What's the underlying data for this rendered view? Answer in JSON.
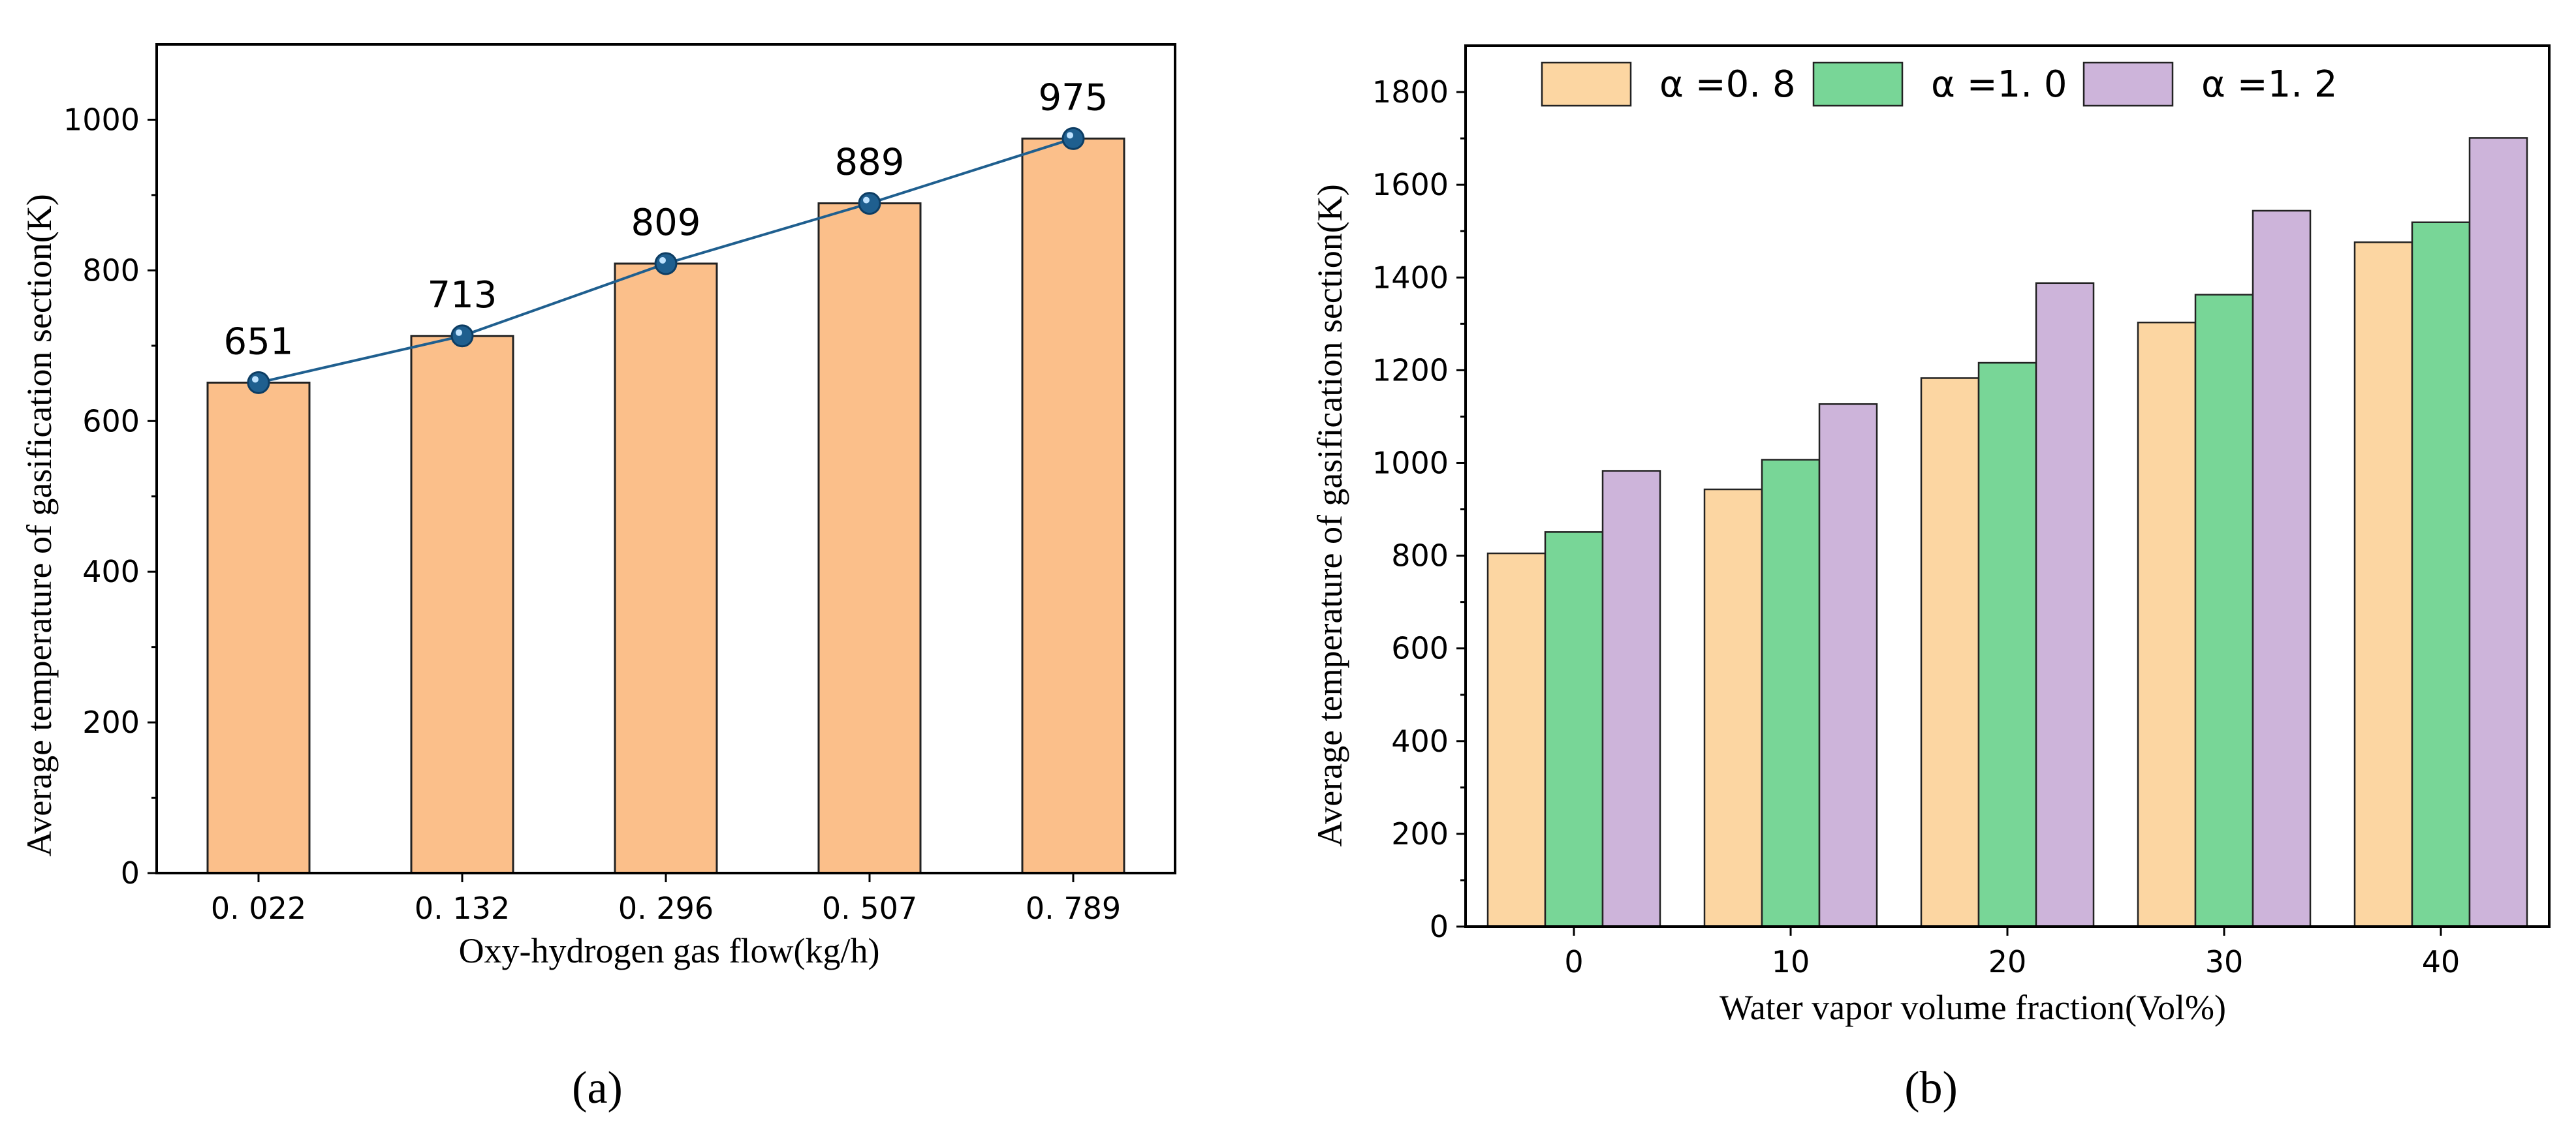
{
  "chart_data": [
    {
      "type": "bar",
      "panel_label": "(a)",
      "categories": [
        "0. 022",
        "0. 132",
        "0. 296",
        "0. 507",
        "0. 789"
      ],
      "values": [
        651,
        713,
        809,
        889,
        975
      ],
      "data_labels": [
        "651",
        "713",
        "809",
        "889",
        "975"
      ],
      "overlay_line": {
        "type": "line",
        "values": [
          651,
          713,
          809,
          889,
          975
        ],
        "color": "#1f5f8f"
      },
      "title": "",
      "xlabel": "Oxy-hydrogen gas flow(kg/h)",
      "ylabel": "Average temperature of gasification section(K)",
      "ylim": [
        0,
        1100
      ],
      "yticks": [
        0,
        200,
        400,
        600,
        800,
        1000
      ],
      "bar_color": "#fbbf8a",
      "grid": false
    },
    {
      "type": "bar",
      "panel_label": "(b)",
      "categories": [
        "0",
        "10",
        "20",
        "30",
        "40"
      ],
      "series": [
        {
          "name": "α =0. 8",
          "values": [
            805,
            943,
            1183,
            1303,
            1476
          ],
          "color": "#fcd6a2"
        },
        {
          "name": "α =1. 0",
          "values": [
            851,
            1007,
            1216,
            1363,
            1519
          ],
          "color": "#78d697"
        },
        {
          "name": "α =1. 2",
          "values": [
            983,
            1127,
            1388,
            1544,
            1701
          ],
          "color": "#cdb4da"
        }
      ],
      "title": "",
      "xlabel": "Water vapor volume fraction(Vol%)",
      "ylabel": "Average temperature of gasification section(K)",
      "ylim": [
        0,
        1900
      ],
      "yticks": [
        0,
        200,
        400,
        600,
        800,
        1000,
        1200,
        1400,
        1600,
        1800
      ],
      "legend_position": "top",
      "grid": false
    }
  ]
}
